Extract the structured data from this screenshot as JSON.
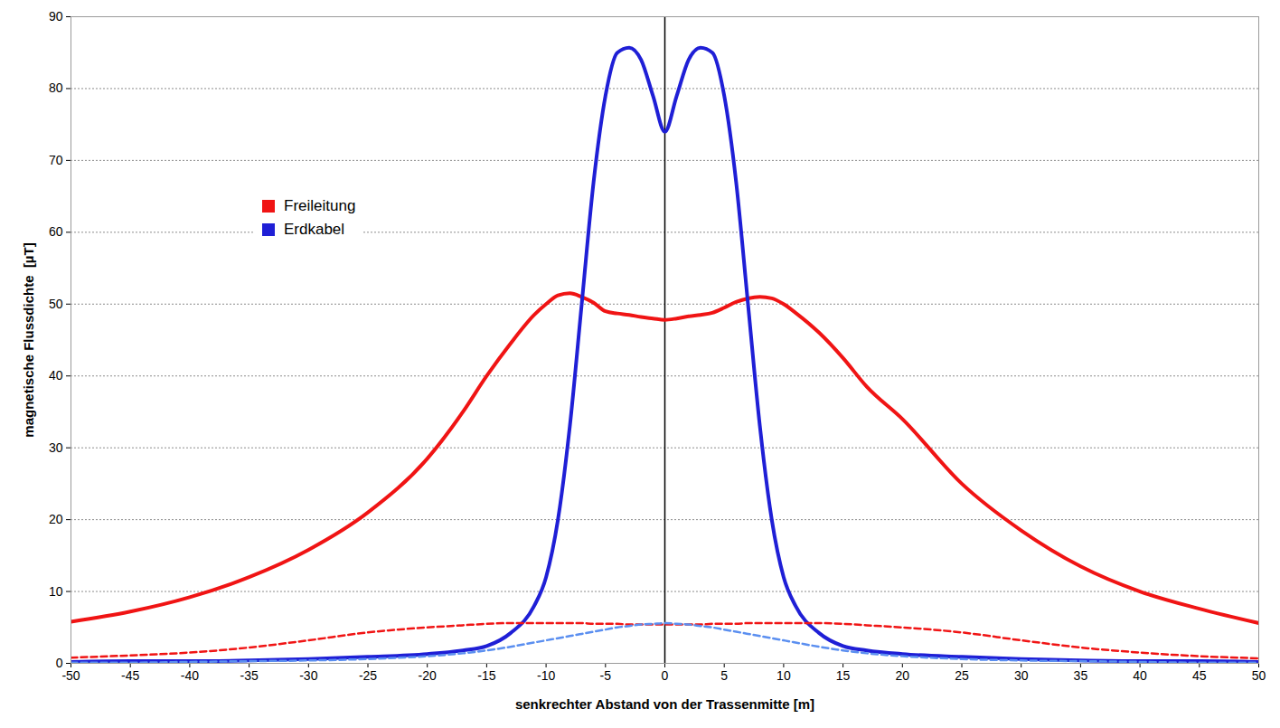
{
  "chart_data": {
    "type": "line",
    "xlabel": "senkrechter Abstand von der Trassenmitte [m]",
    "ylabel": "magnetische Flussdichte  [µT]",
    "x": [
      -50,
      -45,
      -40,
      -35,
      -30,
      -25,
      -20,
      -17,
      -15,
      -13,
      -11,
      -10,
      -9,
      -8,
      -7,
      -6,
      -5,
      -4,
      -3,
      -2,
      -1,
      0,
      1,
      2,
      3,
      4,
      5,
      6,
      7,
      8,
      9,
      10,
      11,
      13,
      15,
      17,
      20,
      25,
      30,
      35,
      40,
      45,
      50
    ],
    "series": [
      {
        "name": "Freileitung",
        "color": "#f01414",
        "line_style": "solid",
        "values": [
          5.8,
          7.2,
          9.2,
          12,
          15.8,
          21,
          28.5,
          35,
          40,
          44.5,
          48.5,
          50,
          51.2,
          51.5,
          51,
          50.2,
          49,
          48.7,
          48.5,
          48.2,
          48,
          47.8,
          48,
          48.3,
          48.5,
          48.8,
          49.5,
          50.3,
          50.8,
          51,
          50.8,
          50,
          48.8,
          46,
          42.5,
          38.5,
          34,
          25,
          18.5,
          13.5,
          10,
          7.6,
          5.6
        ]
      },
      {
        "name": "Erdkabel",
        "color": "#1f1fd6",
        "line_style": "solid",
        "values": [
          0.2,
          0.3,
          0.3,
          0.4,
          0.6,
          0.9,
          1.3,
          1.8,
          2.4,
          4.2,
          8,
          12,
          20,
          33,
          50,
          67,
          79,
          85,
          85.7,
          84,
          79,
          74,
          79,
          84,
          85.7,
          85,
          79,
          67,
          50,
          33,
          20,
          12,
          8,
          4.2,
          2.4,
          1.8,
          1.3,
          0.9,
          0.6,
          0.4,
          0.3,
          0.3,
          0.2
        ]
      },
      {
        "name": "Freileitung",
        "color": "#f01414",
        "line_style": "dashed",
        "values": [
          0.8,
          1.1,
          1.5,
          2.2,
          3.2,
          4.3,
          5,
          5.3,
          5.5,
          5.6,
          5.6,
          5.6,
          5.6,
          5.6,
          5.6,
          5.5,
          5.5,
          5.5,
          5.4,
          5.4,
          5.4,
          5.4,
          5.4,
          5.4,
          5.4,
          5.5,
          5.5,
          5.5,
          5.6,
          5.6,
          5.6,
          5.6,
          5.6,
          5.6,
          5.5,
          5.3,
          5,
          4.3,
          3.2,
          2.2,
          1.5,
          1,
          0.7
        ]
      },
      {
        "name": "Erdkabel",
        "color": "#5b8ff0",
        "line_style": "dashed",
        "values": [
          0.1,
          0.1,
          0.2,
          0.3,
          0.4,
          0.6,
          1,
          1.4,
          1.8,
          2.3,
          2.9,
          3.2,
          3.5,
          3.8,
          4.1,
          4.4,
          4.7,
          5,
          5.2,
          5.4,
          5.5,
          5.6,
          5.5,
          5.4,
          5.2,
          5,
          4.7,
          4.4,
          4.1,
          3.8,
          3.5,
          3.2,
          2.9,
          2.3,
          1.8,
          1.4,
          1,
          0.6,
          0.4,
          0.3,
          0.2,
          0.1,
          0.1
        ]
      }
    ],
    "xlim": [
      -50,
      50
    ],
    "xticks": [
      -50,
      -45,
      -40,
      -35,
      -30,
      -25,
      -20,
      -15,
      -10,
      -5,
      0,
      5,
      10,
      15,
      20,
      25,
      30,
      35,
      40,
      45,
      50
    ],
    "ylim": [
      0,
      90
    ],
    "yticks": [
      0,
      10,
      20,
      30,
      40,
      50,
      60,
      70,
      80,
      90
    ],
    "grid": true,
    "legend": "left"
  }
}
